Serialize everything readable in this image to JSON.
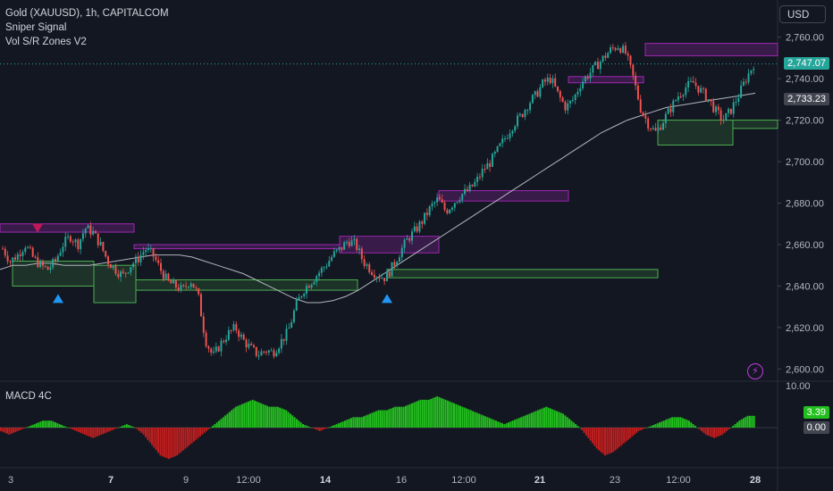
{
  "instrument": {
    "title": "Gold (XAUUSD), 1h, CAPITALCOM",
    "indicators": [
      "Sniper Signal",
      "Vol S/R Zones V2"
    ],
    "currency": "USD"
  },
  "price_axis": {
    "ticks": [
      "2,760.00",
      "2,740.00",
      "2,720.00",
      "2,700.00",
      "2,680.00",
      "2,660.00",
      "2,640.00",
      "2,620.00",
      "2,600.00"
    ],
    "last_price": "2,747.07",
    "ma_price": "2,733.23",
    "last_price_color": "#26a69a",
    "ma_price_color": "#434651"
  },
  "macd": {
    "title": "MACD 4C",
    "top_tick": "10.00",
    "value": "3.39",
    "zero": "0.00",
    "pos_color": "#22c01e",
    "neg_color": "#c01e1e"
  },
  "time_axis": {
    "labels": [
      {
        "text": "3",
        "bold": false
      },
      {
        "text": "7",
        "bold": true
      },
      {
        "text": "9",
        "bold": false
      },
      {
        "text": "12:00",
        "bold": false
      },
      {
        "text": "14",
        "bold": true
      },
      {
        "text": "16",
        "bold": false
      },
      {
        "text": "12:00",
        "bold": false
      },
      {
        "text": "21",
        "bold": true
      },
      {
        "text": "23",
        "bold": false
      },
      {
        "text": "12:00",
        "bold": false
      },
      {
        "text": "28",
        "bold": true
      }
    ]
  },
  "colors": {
    "up": "#26a69a",
    "down": "#ef5350",
    "resistance_zone": "#9c27b0",
    "support_zone": "#4caf50",
    "ma_line": "#b2b5be",
    "signal_up": "#2196f3",
    "signal_down": "#c2185b"
  },
  "chart_data": {
    "type": "candlestick",
    "price_range": [
      2595,
      2765
    ],
    "price_path": [
      2658,
      2652,
      2655,
      2660,
      2654,
      2650,
      2648,
      2652,
      2660,
      2664,
      2660,
      2668,
      2666,
      2660,
      2652,
      2648,
      2645,
      2650,
      2653,
      2658,
      2655,
      2648,
      2642,
      2640,
      2638,
      2643,
      2636,
      2614,
      2606,
      2612,
      2617,
      2620,
      2614,
      2610,
      2607,
      2609,
      2608,
      2613,
      2618,
      2630,
      2638,
      2642,
      2646,
      2650,
      2655,
      2658,
      2662,
      2660,
      2652,
      2648,
      2645,
      2644,
      2650,
      2657,
      2663,
      2667,
      2672,
      2678,
      2682,
      2676,
      2680,
      2684,
      2686,
      2690,
      2696,
      2700,
      2706,
      2712,
      2718,
      2722,
      2728,
      2732,
      2738,
      2740,
      2732,
      2726,
      2730,
      2738,
      2742,
      2746,
      2750,
      2754,
      2756,
      2752,
      2740,
      2725,
      2718,
      2714,
      2720,
      2726,
      2732,
      2736,
      2738,
      2734,
      2730,
      2724,
      2720,
      2725,
      2732,
      2740,
      2747
    ],
    "ma_path": [
      2648,
      2650,
      2650,
      2651,
      2651,
      2650,
      2650,
      2650,
      2651,
      2652,
      2653,
      2654,
      2655,
      2655,
      2655,
      2654,
      2652,
      2650,
      2648,
      2646,
      2643,
      2640,
      2637,
      2634,
      2632,
      2632,
      2633,
      2635,
      2638,
      2642,
      2646,
      2650,
      2654,
      2658,
      2662,
      2666,
      2670,
      2674,
      2678,
      2682,
      2686,
      2690,
      2694,
      2698,
      2702,
      2706,
      2710,
      2714,
      2717,
      2720,
      2722,
      2724,
      2726,
      2727,
      2728,
      2729,
      2730,
      2731,
      2732,
      2733
    ],
    "resistance_zones": [
      {
        "from": 2670,
        "to": 2666
      },
      {
        "from": 2660,
        "to": 2658
      },
      {
        "from": 2664,
        "to": 2656
      },
      {
        "from": 2686,
        "to": 2681
      },
      {
        "from": 2741,
        "to": 2738
      },
      {
        "from": 2757,
        "to": 2751
      }
    ],
    "support_zones": [
      {
        "from": 2652,
        "to": 2640
      },
      {
        "from": 2650,
        "to": 2632
      },
      {
        "from": 2643,
        "to": 2638
      },
      {
        "from": 2648,
        "to": 2644
      },
      {
        "from": 2720,
        "to": 2708
      },
      {
        "from": 2720,
        "to": 2716
      }
    ],
    "signals": [
      {
        "type": "sell",
        "price": 2664
      },
      {
        "type": "buy",
        "price": 2637
      },
      {
        "type": "buy",
        "price": 2637
      }
    ],
    "macd_histogram": [
      -1,
      -2,
      -1,
      0,
      1,
      2,
      2,
      1,
      0,
      -1,
      -2,
      -3,
      -2,
      -1,
      0,
      1,
      0,
      -2,
      -5,
      -8,
      -9,
      -8,
      -6,
      -4,
      -2,
      0,
      2,
      4,
      6,
      7,
      8,
      7,
      6,
      6,
      5,
      3,
      1,
      0,
      -1,
      0,
      1,
      2,
      3,
      3,
      4,
      5,
      5,
      6,
      6,
      7,
      8,
      8,
      9,
      8,
      7,
      6,
      5,
      4,
      3,
      2,
      1,
      2,
      3,
      4,
      5,
      6,
      5,
      4,
      2,
      0,
      -3,
      -6,
      -8,
      -7,
      -5,
      -3,
      -1,
      0,
      1,
      2,
      3,
      3,
      2,
      0,
      -2,
      -3,
      -2,
      0,
      2,
      3.39
    ]
  }
}
